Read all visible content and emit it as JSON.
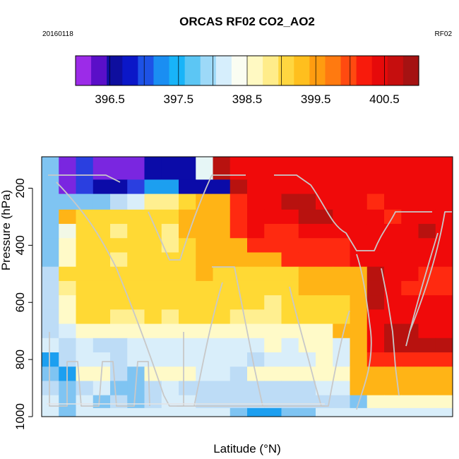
{
  "chart_data": {
    "type": "heatmap",
    "title": "ORCAS RF02 CO2_AO2",
    "subtitle_left": "20160118",
    "subtitle_right": "RF02",
    "xlabel": "Latitude (°N)",
    "ylabel": "Pressure (hPa)",
    "ylim": [
      1000,
      90
    ],
    "yticks": [
      "200",
      "400",
      "600",
      "800",
      "1000"
    ],
    "ytick_values": [
      200,
      400,
      600,
      800,
      1000
    ],
    "colorbar": {
      "range": [
        396.0,
        401.0
      ],
      "tick_labels": [
        "396.5",
        "397.5",
        "398.5",
        "399.5",
        "400.5"
      ],
      "tick_values": [
        396.5,
        397.5,
        398.5,
        399.5,
        400.5
      ],
      "colors": [
        "#9c2be8",
        "#5a0fc8",
        "#0e0e9e",
        "#0b17c8",
        "#1d52e6",
        "#1a8ef2",
        "#18b4f8",
        "#5cc6f4",
        "#9dd9f8",
        "#d6eefc",
        "#fafdf2",
        "#fff9c2",
        "#ffec8a",
        "#ffd640",
        "#ffbf1e",
        "#ff9c10",
        "#ff7a10",
        "#ff4a10",
        "#f81b0c",
        "#e60a0a",
        "#c60e0e",
        "#a51212"
      ]
    },
    "rows": [
      {
        "p": 150,
        "cells": [
          "lb",
          "pu",
          "bl",
          "pu",
          "pu",
          "pu",
          "db",
          "db",
          "db",
          "vl",
          "dr",
          "r",
          "r",
          "r",
          "r",
          "r",
          "r",
          "r",
          "r",
          "r",
          "r",
          "r",
          "r",
          "r"
        ]
      },
      {
        "p": 190,
        "cells": [
          "lb",
          "pu",
          "bl",
          "db",
          "db",
          "bl",
          "mb",
          "mb",
          "db",
          "db",
          "db",
          "dr",
          "r",
          "r",
          "r",
          "r",
          "r",
          "r",
          "r",
          "r",
          "r",
          "r",
          "r",
          "r"
        ]
      },
      {
        "p": 250,
        "cells": [
          "lb",
          "lb",
          "lb",
          "lb",
          "pb",
          "cy",
          "ly",
          "ly",
          "yl",
          "or",
          "or",
          "rd",
          "r",
          "r",
          "dr",
          "dr",
          "r",
          "r",
          "r",
          "rd",
          "r",
          "r",
          "r",
          "r"
        ]
      },
      {
        "p": 300,
        "cells": [
          "lb",
          "or",
          "yl",
          "yl",
          "yl",
          "yl",
          "yl",
          "yl",
          "or",
          "or",
          "or",
          "rd",
          "r",
          "r",
          "r",
          "dr",
          "dr",
          "r",
          "r",
          "r",
          "rd",
          "r",
          "r",
          "r"
        ]
      },
      {
        "p": 350,
        "cells": [
          "lb",
          "pc",
          "yl",
          "yl",
          "ly",
          "yl",
          "yl",
          "ly",
          "or",
          "or",
          "or",
          "rd",
          "r",
          "rd",
          "rd",
          "r",
          "r",
          "r",
          "r",
          "r",
          "r",
          "r",
          "dr",
          "r"
        ]
      },
      {
        "p": 400,
        "cells": [
          "lb",
          "py",
          "yl",
          "yl",
          "yl",
          "yl",
          "yl",
          "ly",
          "yl",
          "or",
          "or",
          "or",
          "rd",
          "rd",
          "rd",
          "rd",
          "rd",
          "rd",
          "r",
          "r",
          "r",
          "r",
          "r",
          "r"
        ]
      },
      {
        "p": 450,
        "cells": [
          "lb",
          "py",
          "yl",
          "yl",
          "ly",
          "yl",
          "yl",
          "yl",
          "yl",
          "or",
          "or",
          "or",
          "or",
          "or",
          "rd",
          "rd",
          "rd",
          "rd",
          "r",
          "r",
          "r",
          "r",
          "r",
          "r"
        ]
      },
      {
        "p": 500,
        "cells": [
          "pb",
          "yl",
          "yl",
          "yl",
          "yl",
          "yl",
          "yl",
          "yl",
          "yl",
          "or",
          "yl",
          "yl",
          "yl",
          "yl",
          "yl",
          "or",
          "or",
          "or",
          "or",
          "dr",
          "r",
          "r",
          "rd",
          "rd"
        ]
      },
      {
        "p": 550,
        "cells": [
          "pb",
          "ly",
          "yl",
          "yl",
          "yl",
          "yl",
          "yl",
          "yl",
          "yl",
          "yl",
          "yl",
          "yl",
          "yl",
          "yl",
          "yl",
          "or",
          "or",
          "or",
          "or",
          "dr",
          "r",
          "rd",
          "rd",
          "rd"
        ]
      },
      {
        "p": 600,
        "cells": [
          "pb",
          "py",
          "yl",
          "yl",
          "yl",
          "yl",
          "yl",
          "yl",
          "yl",
          "yl",
          "yl",
          "yl",
          "yl",
          "ly",
          "yl",
          "yl",
          "yl",
          "yl",
          "or",
          "dr",
          "r",
          "r",
          "r",
          "r"
        ]
      },
      {
        "p": 650,
        "cells": [
          "pb",
          "py",
          "yl",
          "yl",
          "ly",
          "ly",
          "yl",
          "ly",
          "yl",
          "yl",
          "yl",
          "ly",
          "ly",
          "ly",
          "yl",
          "yl",
          "yl",
          "yl",
          "or",
          "r",
          "r",
          "r",
          "r",
          "r"
        ]
      },
      {
        "p": 700,
        "cells": [
          "pb",
          "cy",
          "py",
          "py",
          "py",
          "py",
          "py",
          "py",
          "py",
          "py",
          "py",
          "py",
          "py",
          "py",
          "py",
          "py",
          "py",
          "or",
          "or",
          "r",
          "dr",
          "dr",
          "r",
          "r"
        ]
      },
      {
        "p": 750,
        "cells": [
          "cy",
          "pb",
          "cy",
          "pb",
          "pb",
          "cy",
          "cy",
          "cy",
          "cy",
          "cy",
          "cy",
          "cy",
          "cy",
          "py",
          "cy",
          "py",
          "py",
          "cy",
          "or",
          "r",
          "dr",
          "dr",
          "dr",
          "dr"
        ]
      },
      {
        "p": 800,
        "cells": [
          "mb",
          "pb",
          "cy",
          "cy",
          "pb",
          "cy",
          "cy",
          "cy",
          "cy",
          "cy",
          "cy",
          "cy",
          "pb",
          "cy",
          "cy",
          "cy",
          "py",
          "cy",
          "or",
          "rd",
          "rd",
          "rd",
          "rd",
          "rd"
        ]
      },
      {
        "p": 850,
        "cells": [
          "lb",
          "mb",
          "py",
          "py",
          "pb",
          "lb",
          "py",
          "py",
          "py",
          "cy",
          "cy",
          "pb",
          "py",
          "py",
          "py",
          "py",
          "py",
          "py",
          "or",
          "or",
          "or",
          "or",
          "or",
          "or"
        ]
      },
      {
        "p": 900,
        "cells": [
          "pb",
          "lb",
          "pb",
          "cy",
          "lb",
          "lb",
          "pb",
          "cy",
          "pb",
          "pb",
          "pb",
          "pb",
          "pb",
          "pb",
          "pb",
          "pb",
          "cy",
          "cy",
          "or",
          "or",
          "or",
          "or",
          "or",
          "or"
        ]
      },
      {
        "p": 950,
        "cells": [
          "cy",
          "lb",
          "cy",
          "lb",
          "pb",
          "lb",
          "pb",
          "cy",
          "cy",
          "pb",
          "pb",
          "pb",
          "pb",
          "pb",
          "pb",
          "pb",
          "pb",
          "pb",
          "lb",
          "py",
          "py",
          "py",
          "py",
          "py"
        ]
      },
      {
        "p": 990,
        "cells": [
          "cy",
          "lb",
          "cy",
          "cy",
          "cy",
          "cy",
          "cy",
          "cy",
          "cy",
          "cy",
          "cy",
          "lb",
          "mb",
          "mb",
          "lb",
          "lb",
          "cy",
          "cy",
          "cy",
          "cy",
          "cy",
          "cy",
          "cy",
          "cy"
        ]
      }
    ]
  }
}
